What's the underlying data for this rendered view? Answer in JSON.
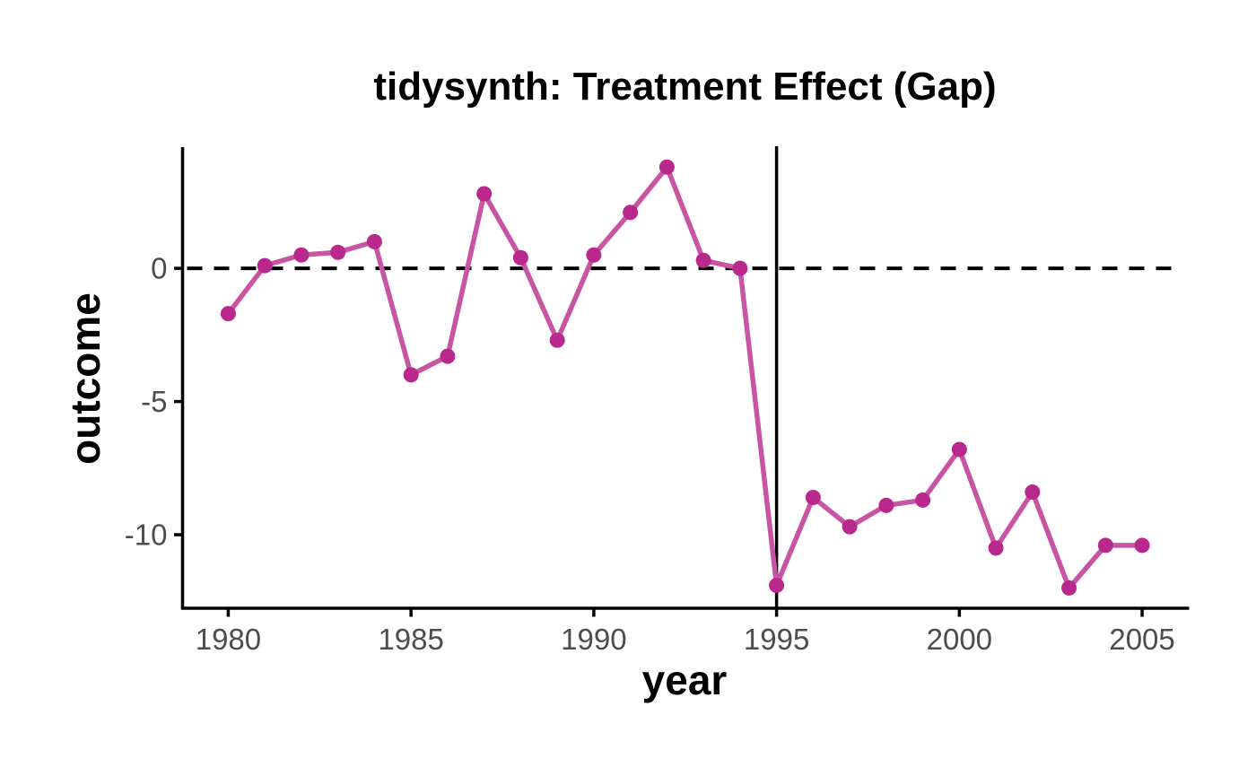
{
  "title": "tidysynth: Treatment Effect (Gap)",
  "colors": {
    "series_point": "#B9288C",
    "series_line": "#C855A4",
    "axis": "#000000",
    "tick_label": "#4D4D4D",
    "reference_line": "#000000",
    "background": "#FFFFFF"
  },
  "chart_data": {
    "type": "line",
    "title": "tidysynth: Treatment Effect (Gap)",
    "xlabel": "year",
    "ylabel": "outcome",
    "series": [
      {
        "name": "gap",
        "x": [
          1980,
          1981,
          1982,
          1983,
          1984,
          1985,
          1986,
          1987,
          1988,
          1989,
          1990,
          1991,
          1992,
          1993,
          1994,
          1995,
          1996,
          1997,
          1998,
          1999,
          2000,
          2001,
          2002,
          2003,
          2004,
          2005
        ],
        "y": [
          -1.7,
          0.1,
          0.5,
          0.6,
          1.0,
          -4.0,
          -3.3,
          2.8,
          0.4,
          -2.7,
          0.5,
          2.1,
          3.8,
          0.3,
          0.0,
          -11.9,
          -8.6,
          -9.7,
          -8.9,
          -8.7,
          -6.8,
          -10.5,
          -8.4,
          -12.0,
          -10.4,
          -10.4
        ]
      }
    ],
    "x_ticks": [
      "1980",
      "1985",
      "1990",
      "1995",
      "2000",
      "2005"
    ],
    "x_tick_values": [
      1980,
      1985,
      1990,
      1995,
      2000,
      2005
    ],
    "y_ticks": [
      "0",
      "-5",
      "-10"
    ],
    "y_tick_values": [
      0,
      -5,
      -10
    ],
    "xlim": [
      1978.75,
      2006.25
    ],
    "ylim": [
      -12.76,
      4.55
    ],
    "grid": false,
    "legend": false,
    "reference_lines": [
      {
        "orientation": "horizontal",
        "value": 0,
        "style": "dashed"
      },
      {
        "orientation": "vertical",
        "value": 1995,
        "style": "solid"
      }
    ]
  }
}
